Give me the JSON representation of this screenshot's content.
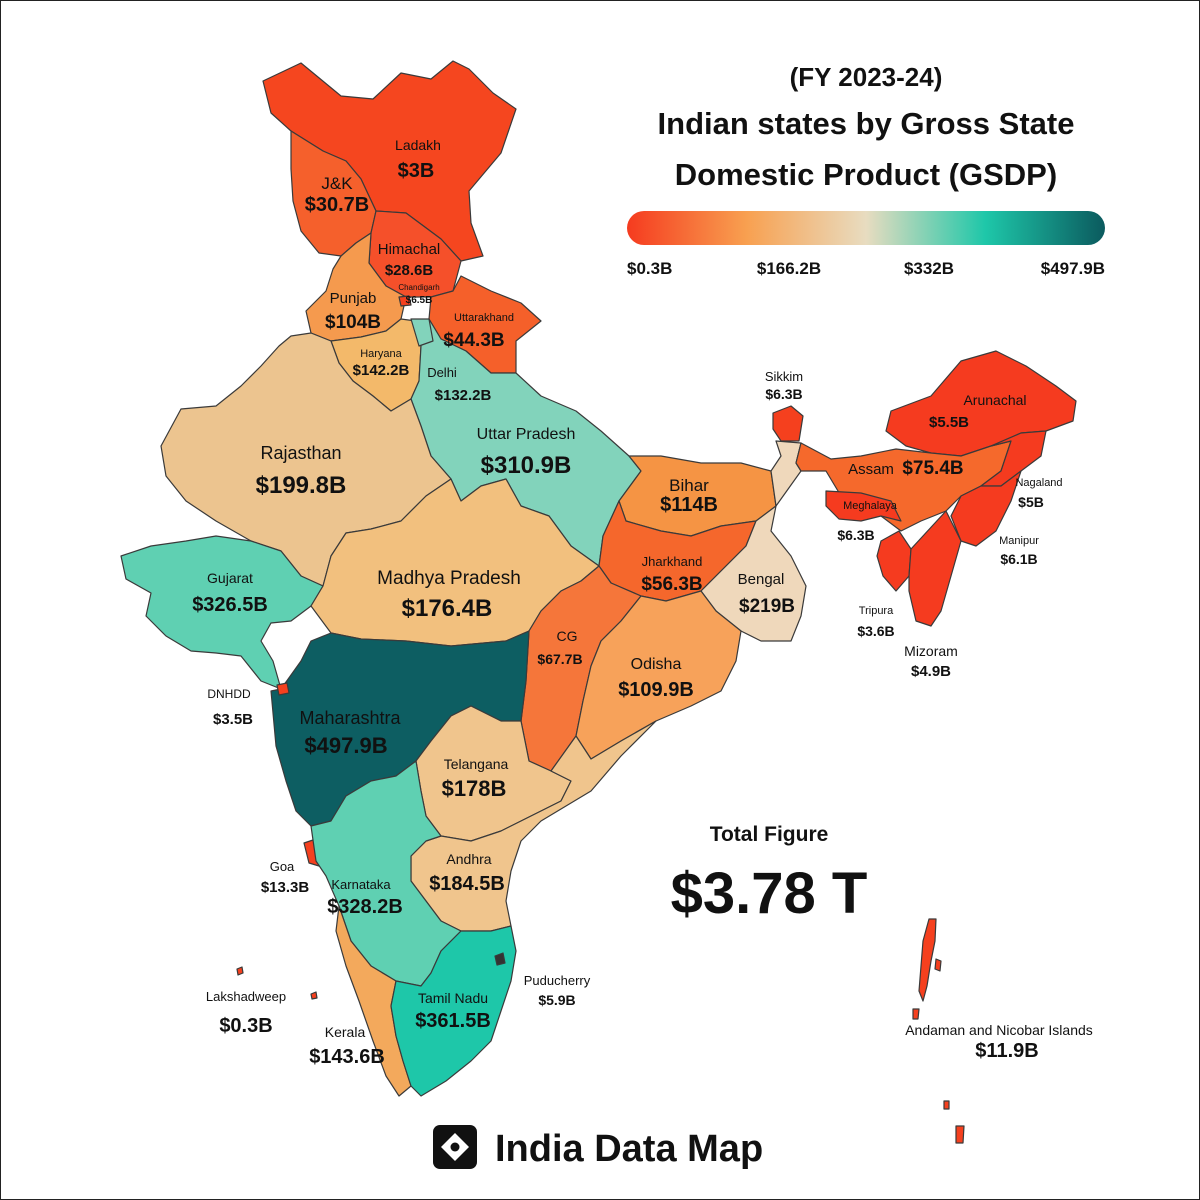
{
  "header": {
    "fiscal_year": "(FY 2023-24)",
    "title_line1": "Indian states by Gross State",
    "title_line2": "Domestic Product (GSDP)"
  },
  "legend": {
    "colors": [
      "#f53b1f",
      "#f8a050",
      "#e8dcc0",
      "#1ec7a9",
      "#0b5a5e"
    ],
    "ticks": [
      "$0.3B",
      "$166.2B",
      "$332B",
      "$497.9B"
    ]
  },
  "total": {
    "label": "Total Figure",
    "value": "$3.78 T"
  },
  "brand": {
    "name": "India Data Map",
    "icon": "location-pin-icon"
  },
  "regions": [
    {
      "name": "Ladakh",
      "value": "$3B"
    },
    {
      "name": "J&K",
      "value": "$30.7B"
    },
    {
      "name": "Himachal",
      "value": "$28.6B"
    },
    {
      "name": "Chandigarh",
      "value": "$6.5B"
    },
    {
      "name": "Punjab",
      "value": "$104B"
    },
    {
      "name": "Uttarakhand",
      "value": "$44.3B"
    },
    {
      "name": "Haryana",
      "value": "$142.2B"
    },
    {
      "name": "Delhi",
      "value": "$132.2B"
    },
    {
      "name": "Rajasthan",
      "value": "$199.8B"
    },
    {
      "name": "Uttar Pradesh",
      "value": "$310.9B"
    },
    {
      "name": "Bihar",
      "value": "$114B"
    },
    {
      "name": "Sikkim",
      "value": "$6.3B"
    },
    {
      "name": "Arunachal",
      "value": "$5.5B"
    },
    {
      "name": "Assam",
      "value": "$75.4B"
    },
    {
      "name": "Nagaland",
      "value": "$5B"
    },
    {
      "name": "Meghalaya",
      "value": "$6.3B"
    },
    {
      "name": "Manipur",
      "value": "$6.1B"
    },
    {
      "name": "Tripura",
      "value": "$3.6B"
    },
    {
      "name": "Mizoram",
      "value": "$4.9B"
    },
    {
      "name": "Gujarat",
      "value": "$326.5B"
    },
    {
      "name": "Madhya Pradesh",
      "value": "$176.4B"
    },
    {
      "name": "Jharkhand",
      "value": "$56.3B"
    },
    {
      "name": "Bengal",
      "value": "$219B"
    },
    {
      "name": "CG",
      "value": "$67.7B"
    },
    {
      "name": "Odisha",
      "value": "$109.9B"
    },
    {
      "name": "DNHDD",
      "value": "$3.5B"
    },
    {
      "name": "Maharashtra",
      "value": "$497.9B"
    },
    {
      "name": "Telangana",
      "value": "$178B"
    },
    {
      "name": "Goa",
      "value": "$13.3B"
    },
    {
      "name": "Andhra",
      "value": "$184.5B"
    },
    {
      "name": "Karnataka",
      "value": "$328.2B"
    },
    {
      "name": "Puducherry",
      "value": "$5.9B"
    },
    {
      "name": "Lakshadweep",
      "value": "$0.3B"
    },
    {
      "name": "Tamil Nadu",
      "value": "$361.5B"
    },
    {
      "name": "Kerala",
      "value": "$143.6B"
    },
    {
      "name": "Andaman and Nicobar Islands",
      "value": "$11.9B"
    }
  ]
}
